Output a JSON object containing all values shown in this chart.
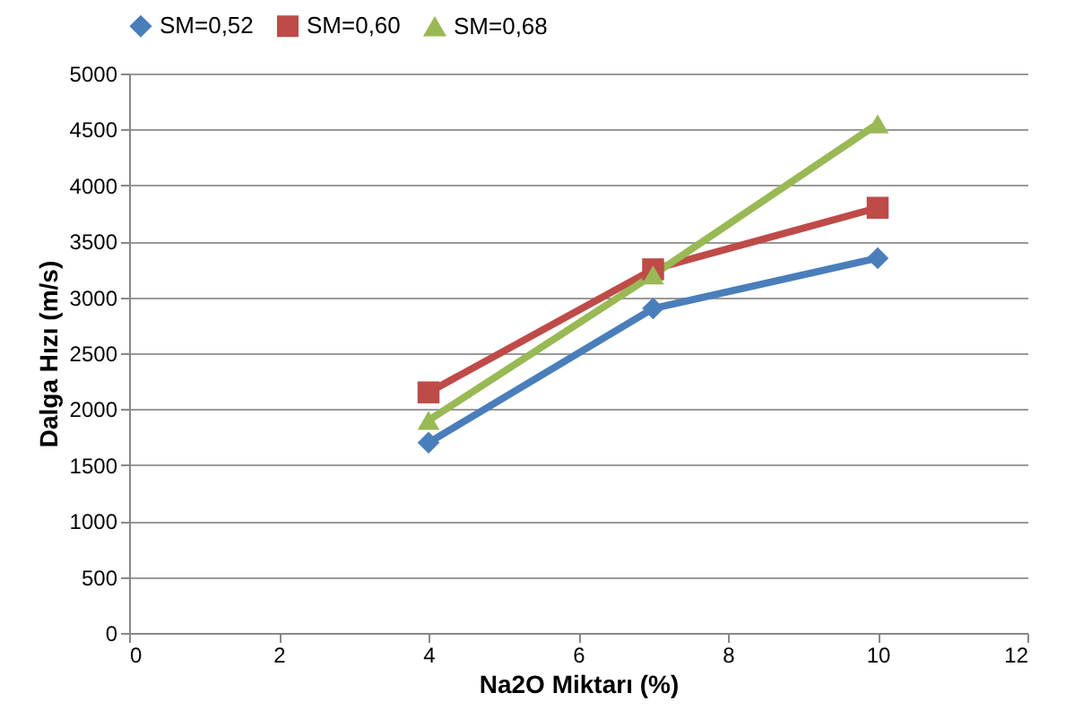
{
  "chart_data": {
    "type": "line",
    "xlabel": "Na2O Miktarı (%)",
    "ylabel": "Dalga Hızı (m/s)",
    "x": [
      4,
      7,
      10
    ],
    "series": [
      {
        "name": "SM=0,52",
        "color": "#4a7ebb",
        "marker": "diamond",
        "values": [
          1700,
          2900,
          3350
        ]
      },
      {
        "name": "SM=0,60",
        "color": "#be4b48",
        "marker": "square",
        "values": [
          2150,
          3250,
          3800
        ]
      },
      {
        "name": "SM=0,68",
        "color": "#98b954",
        "marker": "triangle",
        "values": [
          1900,
          3200,
          4550
        ]
      }
    ],
    "xlim": [
      0,
      12
    ],
    "xticks": [
      0,
      2,
      4,
      6,
      8,
      10,
      12
    ],
    "ylim": [
      0,
      5000
    ],
    "yticks": [
      0,
      500,
      1000,
      1500,
      2000,
      2500,
      3000,
      3500,
      4000,
      4500,
      5000
    ],
    "grid": "y",
    "legend": "top",
    "line_style": "solid"
  }
}
